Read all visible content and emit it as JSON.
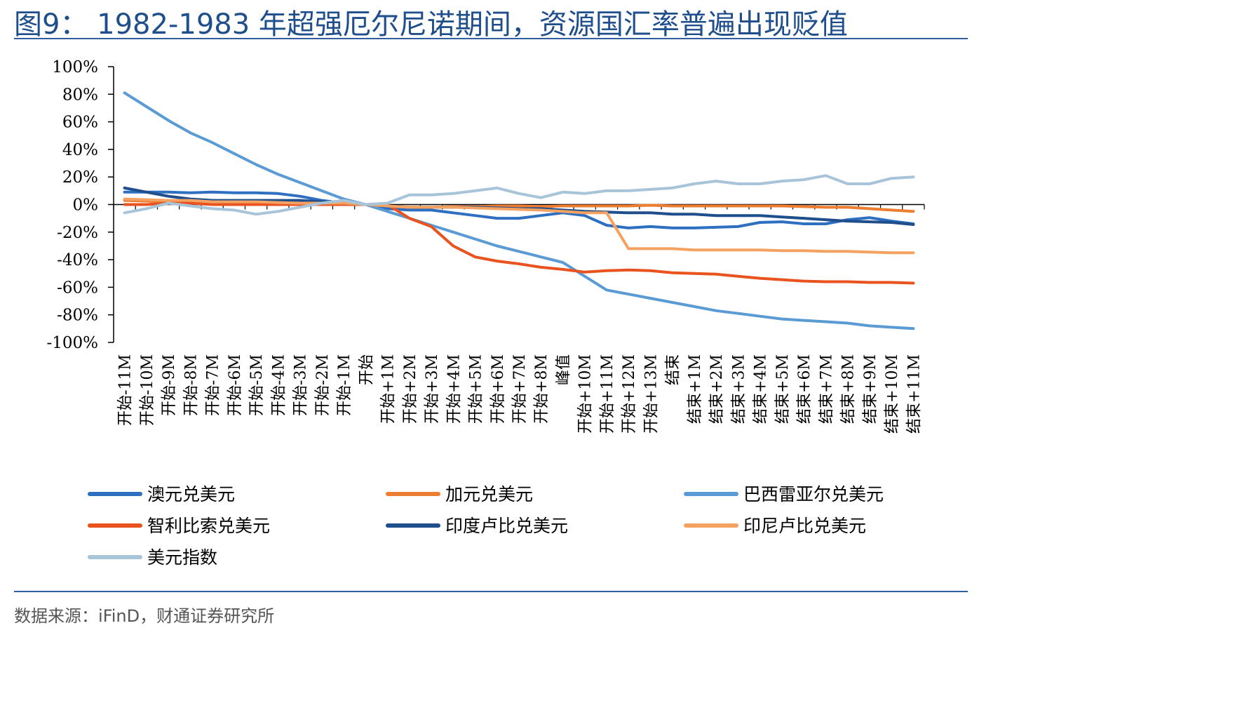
{
  "figure": {
    "title": "图9： 1982-1983 年超强厄尔尼诺期间，资源国汇率普遍出现贬值",
    "source": "数据来源：iFinD，财通证券研究所"
  },
  "chart_data": {
    "type": "line",
    "ylim": [
      -100,
      100
    ],
    "y_ticks": [
      100,
      80,
      60,
      40,
      20,
      0,
      -20,
      -40,
      -60,
      -80,
      -100
    ],
    "y_tick_labels": [
      "100%",
      "80%",
      "60%",
      "40%",
      "20%",
      "0%",
      "-20%",
      "-40%",
      "-60%",
      "-80%",
      "-100%"
    ],
    "categories": [
      "开始-11M",
      "开始-10M",
      "开始-9M",
      "开始-8M",
      "开始-7M",
      "开始-6M",
      "开始-5M",
      "开始-4M",
      "开始-3M",
      "开始-2M",
      "开始-1M",
      "开始",
      "开始+1M",
      "开始+2M",
      "开始+3M",
      "开始+4M",
      "开始+5M",
      "开始+6M",
      "开始+7M",
      "开始+8M",
      "峰值",
      "开始+10M",
      "开始+11M",
      "开始+12M",
      "开始+13M",
      "结束",
      "结束+1M",
      "结束+2M",
      "结束+3M",
      "结束+4M",
      "结束+5M",
      "结束+6M",
      "结束+7M",
      "结束+8M",
      "结束+9M",
      "结束+10M",
      "结束+11M"
    ],
    "grid": false,
    "legend_position": "bottom",
    "series": [
      {
        "name": "澳元兑美元",
        "color": "#2e6fc2",
        "values": [
          9,
          9,
          9,
          8.5,
          9,
          8.5,
          8.5,
          8,
          6,
          3,
          1,
          0,
          -3,
          -4,
          -4,
          -6,
          -8,
          -10,
          -10,
          -8,
          -6,
          -8,
          -15,
          -17,
          -16,
          -17,
          -17,
          -16.5,
          -16,
          -13,
          -12.5,
          -14,
          -14,
          -11,
          -9.5,
          -12,
          -14
        ]
      },
      {
        "name": "加元兑美元",
        "color": "#ed7d31",
        "values": [
          3,
          2.5,
          2,
          2,
          1.5,
          1.5,
          1.5,
          1,
          1,
          1,
          0.5,
          0,
          -1,
          -2,
          -2,
          -1.5,
          -1.5,
          -1,
          -1,
          -1.5,
          -1,
          -1,
          -1,
          -1,
          -0.5,
          -1,
          -1,
          -1,
          -1,
          -1,
          -1,
          -1.5,
          -2,
          -2,
          -3,
          -4,
          -5
        ]
      },
      {
        "name": "巴西雷亚尔兑美元",
        "color": "#5b9bd5",
        "values": [
          81,
          71,
          61,
          52,
          45,
          37,
          29,
          22,
          16,
          10,
          4,
          0,
          -5,
          -10,
          -15,
          -20,
          -25,
          -30,
          -34,
          -38,
          -42,
          -52,
          -62,
          -65,
          -68,
          -71,
          -74,
          -77,
          -79,
          -81,
          -83,
          -84,
          -85,
          -86,
          -88,
          -89,
          -90
        ]
      },
      {
        "name": "智利比索兑美元",
        "color": "#e8531f",
        "values": [
          0,
          0,
          1,
          1,
          0,
          0,
          0,
          0,
          0,
          0,
          0,
          0,
          0,
          -10,
          -16,
          -30,
          -38,
          -41,
          -43,
          -45.5,
          -47,
          -49,
          -48,
          -47.5,
          -48,
          -49.5,
          -50,
          -50.5,
          -52,
          -53.5,
          -54.5,
          -55.5,
          -56,
          -56,
          -56.5,
          -56.5,
          -57
        ]
      },
      {
        "name": "印度卢比兑美元",
        "color": "#1f4e8c",
        "values": [
          12,
          9,
          6,
          4,
          3,
          3,
          3,
          3,
          3,
          2,
          1,
          0,
          -1,
          -2,
          -2,
          -2,
          -2,
          -2.5,
          -3,
          -3,
          -4,
          -5,
          -5.5,
          -6,
          -6,
          -7,
          -7,
          -8,
          -8,
          -8,
          -9,
          -10,
          -11,
          -12,
          -12.5,
          -13,
          -14.5
        ]
      },
      {
        "name": "印尼卢比兑美元",
        "color": "#f4a261",
        "values": [
          4,
          3.5,
          3,
          3,
          2,
          2,
          2,
          1.5,
          1,
          1,
          1,
          0,
          -1,
          -2,
          -2,
          -2,
          -2.5,
          -3,
          -3.5,
          -4,
          -5,
          -6,
          -6,
          -32,
          -32,
          -32,
          -33,
          -33,
          -33,
          -33,
          -33.5,
          -33.5,
          -34,
          -34,
          -34.5,
          -35,
          -35
        ]
      },
      {
        "name": "美元指数",
        "color": "#a8c4d8",
        "values": [
          -6,
          -3,
          1,
          -1,
          -3,
          -4,
          -7,
          -5,
          -2,
          1,
          3,
          0,
          1,
          7,
          7,
          8,
          10,
          12,
          8,
          5,
          9,
          8,
          10,
          10,
          11,
          12,
          15,
          17,
          15,
          15,
          17,
          18,
          21,
          15,
          15,
          19,
          20
        ]
      }
    ]
  }
}
